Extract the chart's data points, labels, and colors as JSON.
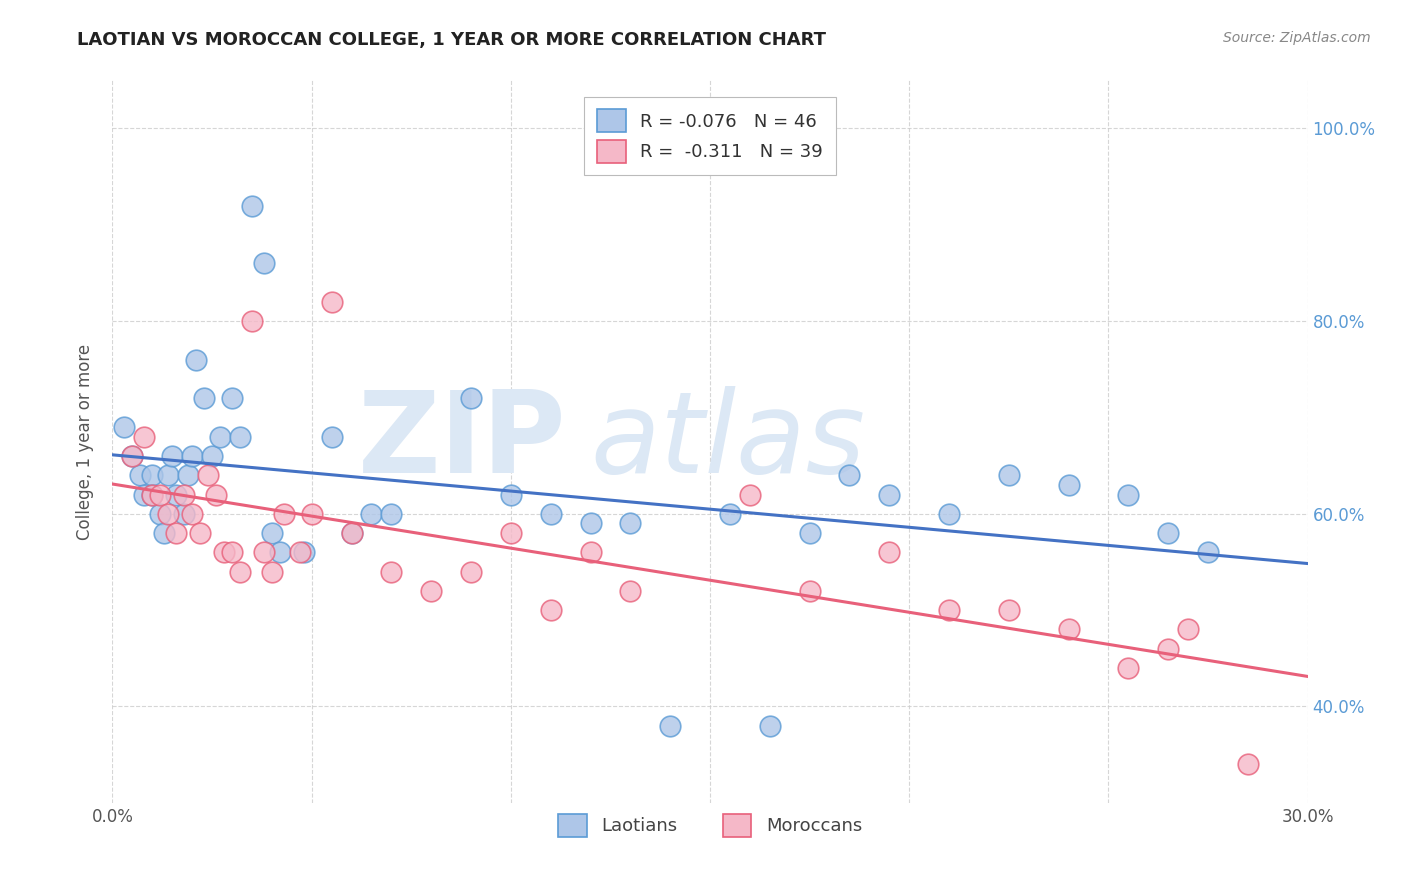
{
  "title": "LAOTIAN VS MOROCCAN COLLEGE, 1 YEAR OR MORE CORRELATION CHART",
  "source_text": "Source: ZipAtlas.com",
  "ylabel": "College, 1 year or more",
  "xlim": [
    0.0,
    0.3
  ],
  "ylim": [
    0.3,
    1.05
  ],
  "xticks": [
    0.0,
    0.05,
    0.1,
    0.15,
    0.2,
    0.25,
    0.3
  ],
  "xtick_labels": [
    "0.0%",
    "",
    "",
    "",
    "",
    "",
    "30.0%"
  ],
  "yticks": [
    0.4,
    0.6,
    0.8,
    1.0
  ],
  "ytick_labels": [
    "40.0%",
    "60.0%",
    "80.0%",
    "100.0%"
  ],
  "legend_r1": "R = -0.076",
  "legend_n1": "N = 46",
  "legend_r2": "R =  -0.311",
  "legend_n2": "N = 39",
  "blue_color": "#aec6e8",
  "pink_color": "#f5b8c8",
  "blue_edge_color": "#5b9bd5",
  "pink_edge_color": "#e8607a",
  "blue_line_color": "#4472c4",
  "pink_line_color": "#e8607a",
  "watermark_zip_color": "#dce8f5",
  "watermark_atlas_color": "#dce8f5",
  "blue_scatter_x": [
    0.003,
    0.005,
    0.007,
    0.008,
    0.01,
    0.01,
    0.012,
    0.013,
    0.014,
    0.015,
    0.016,
    0.018,
    0.019,
    0.02,
    0.021,
    0.023,
    0.025,
    0.027,
    0.03,
    0.032,
    0.035,
    0.038,
    0.04,
    0.042,
    0.048,
    0.055,
    0.06,
    0.065,
    0.07,
    0.09,
    0.1,
    0.11,
    0.12,
    0.13,
    0.14,
    0.155,
    0.165,
    0.175,
    0.185,
    0.195,
    0.21,
    0.225,
    0.24,
    0.255,
    0.265,
    0.275
  ],
  "blue_scatter_y": [
    0.69,
    0.66,
    0.64,
    0.62,
    0.64,
    0.62,
    0.6,
    0.58,
    0.64,
    0.66,
    0.62,
    0.6,
    0.64,
    0.66,
    0.76,
    0.72,
    0.66,
    0.68,
    0.72,
    0.68,
    0.92,
    0.86,
    0.58,
    0.56,
    0.56,
    0.68,
    0.58,
    0.6,
    0.6,
    0.72,
    0.62,
    0.6,
    0.59,
    0.59,
    0.38,
    0.6,
    0.38,
    0.58,
    0.64,
    0.62,
    0.6,
    0.64,
    0.63,
    0.62,
    0.58,
    0.56
  ],
  "pink_scatter_x": [
    0.005,
    0.008,
    0.01,
    0.012,
    0.014,
    0.016,
    0.018,
    0.02,
    0.022,
    0.024,
    0.026,
    0.028,
    0.03,
    0.032,
    0.035,
    0.038,
    0.04,
    0.043,
    0.047,
    0.05,
    0.055,
    0.06,
    0.07,
    0.08,
    0.09,
    0.1,
    0.11,
    0.12,
    0.13,
    0.16,
    0.175,
    0.195,
    0.21,
    0.225,
    0.24,
    0.255,
    0.265,
    0.27,
    0.285
  ],
  "pink_scatter_y": [
    0.66,
    0.68,
    0.62,
    0.62,
    0.6,
    0.58,
    0.62,
    0.6,
    0.58,
    0.64,
    0.62,
    0.56,
    0.56,
    0.54,
    0.8,
    0.56,
    0.54,
    0.6,
    0.56,
    0.6,
    0.82,
    0.58,
    0.54,
    0.52,
    0.54,
    0.58,
    0.5,
    0.56,
    0.52,
    0.62,
    0.52,
    0.56,
    0.5,
    0.5,
    0.48,
    0.44,
    0.46,
    0.48,
    0.34
  ]
}
